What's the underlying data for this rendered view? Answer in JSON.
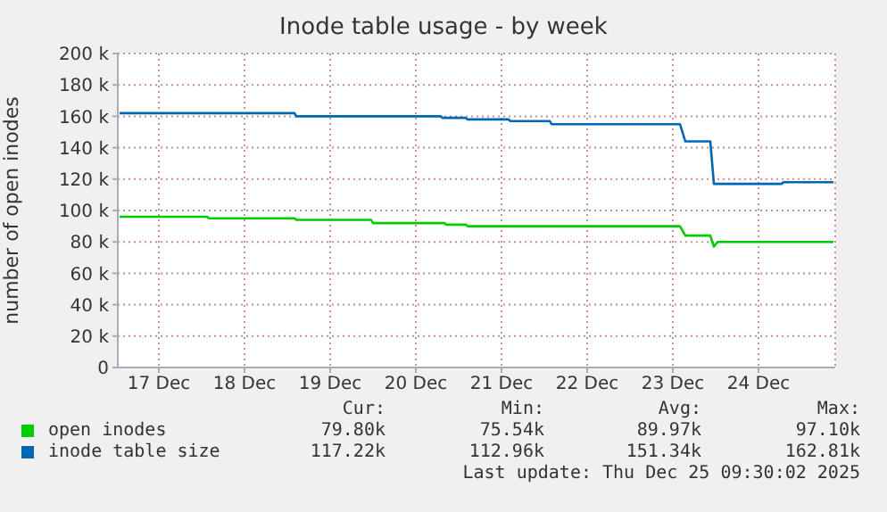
{
  "chart_data": {
    "type": "line",
    "title": "Inode table usage - by week",
    "ylabel": "number of open inodes",
    "xlim": [
      "2025-12-17T00:30",
      "2025-12-25T09:30"
    ],
    "xticks": [
      {
        "value": "2025-12-17T12:00",
        "label": "17 Dec"
      },
      {
        "value": "2025-12-18T12:00",
        "label": "18 Dec"
      },
      {
        "value": "2025-12-19T12:00",
        "label": "19 Dec"
      },
      {
        "value": "2025-12-20T12:00",
        "label": "20 Dec"
      },
      {
        "value": "2025-12-21T12:00",
        "label": "21 Dec"
      },
      {
        "value": "2025-12-22T12:00",
        "label": "22 Dec"
      },
      {
        "value": "2025-12-23T12:00",
        "label": "23 Dec"
      },
      {
        "value": "2025-12-24T12:00",
        "label": "24 Dec"
      }
    ],
    "ylim": [
      0,
      200000
    ],
    "yticks": [
      0,
      {
        "value": 20000,
        "label": "20 k"
      },
      {
        "value": 40000,
        "label": "40 k"
      },
      {
        "value": 60000,
        "label": "60 k"
      },
      {
        "value": 80000,
        "label": "80 k"
      },
      {
        "value": 100000,
        "label": "100 k"
      },
      {
        "value": 120000,
        "label": "120 k"
      },
      {
        "value": 140000,
        "label": "140 k"
      },
      {
        "value": 160000,
        "label": "160 k"
      },
      {
        "value": 180000,
        "label": "180 k"
      },
      {
        "value": 200000,
        "label": "200 k"
      }
    ],
    "grid": true,
    "legend": "bottom",
    "series": [
      {
        "name": "open inodes",
        "color": "#00cc00",
        "x": [
          "2025-12-17T01:00",
          "2025-12-18T01:30",
          "2025-12-18T02:00",
          "2025-12-19T02:00",
          "2025-12-19T02:30",
          "2025-12-19T23:30",
          "2025-12-20T00:00",
          "2025-12-20T20:00",
          "2025-12-20T20:30",
          "2025-12-21T02:00",
          "2025-12-21T02:30",
          "2025-12-23T14:00",
          "2025-12-23T15:30",
          "2025-12-23T22:30",
          "2025-12-23T23:30",
          "2025-12-24T00:30",
          "2025-12-25T09:00"
        ],
        "values": [
          96000,
          96000,
          95000,
          95000,
          94000,
          94000,
          92000,
          92000,
          91000,
          91000,
          90000,
          90000,
          84000,
          84000,
          77000,
          80000,
          80000
        ]
      },
      {
        "name": "inode table size",
        "color": "#0066b3",
        "x": [
          "2025-12-17T01:00",
          "2025-12-19T02:00",
          "2025-12-19T02:30",
          "2025-12-20T19:00",
          "2025-12-20T19:30",
          "2025-12-21T02:00",
          "2025-12-21T02:30",
          "2025-12-21T14:00",
          "2025-12-21T14:30",
          "2025-12-22T01:30",
          "2025-12-22T02:00",
          "2025-12-23T14:00",
          "2025-12-23T15:30",
          "2025-12-23T22:30",
          "2025-12-23T23:30",
          "2025-12-24T18:30",
          "2025-12-24T19:00",
          "2025-12-25T09:00"
        ],
        "values": [
          162000,
          162000,
          160000,
          160000,
          159000,
          159000,
          158000,
          158000,
          157000,
          157000,
          155000,
          155000,
          144000,
          144000,
          117000,
          117000,
          118000,
          118000
        ]
      }
    ],
    "annotations": [
      "Cur:",
      "Min:",
      "Avg:",
      "Max:",
      "79.80k",
      "75.54k",
      "89.97k",
      "97.10k",
      "117.22k",
      "112.96k",
      "151.34k",
      "162.81k",
      "Last update: Thu Dec 25 09:30:02 2025"
    ]
  }
}
